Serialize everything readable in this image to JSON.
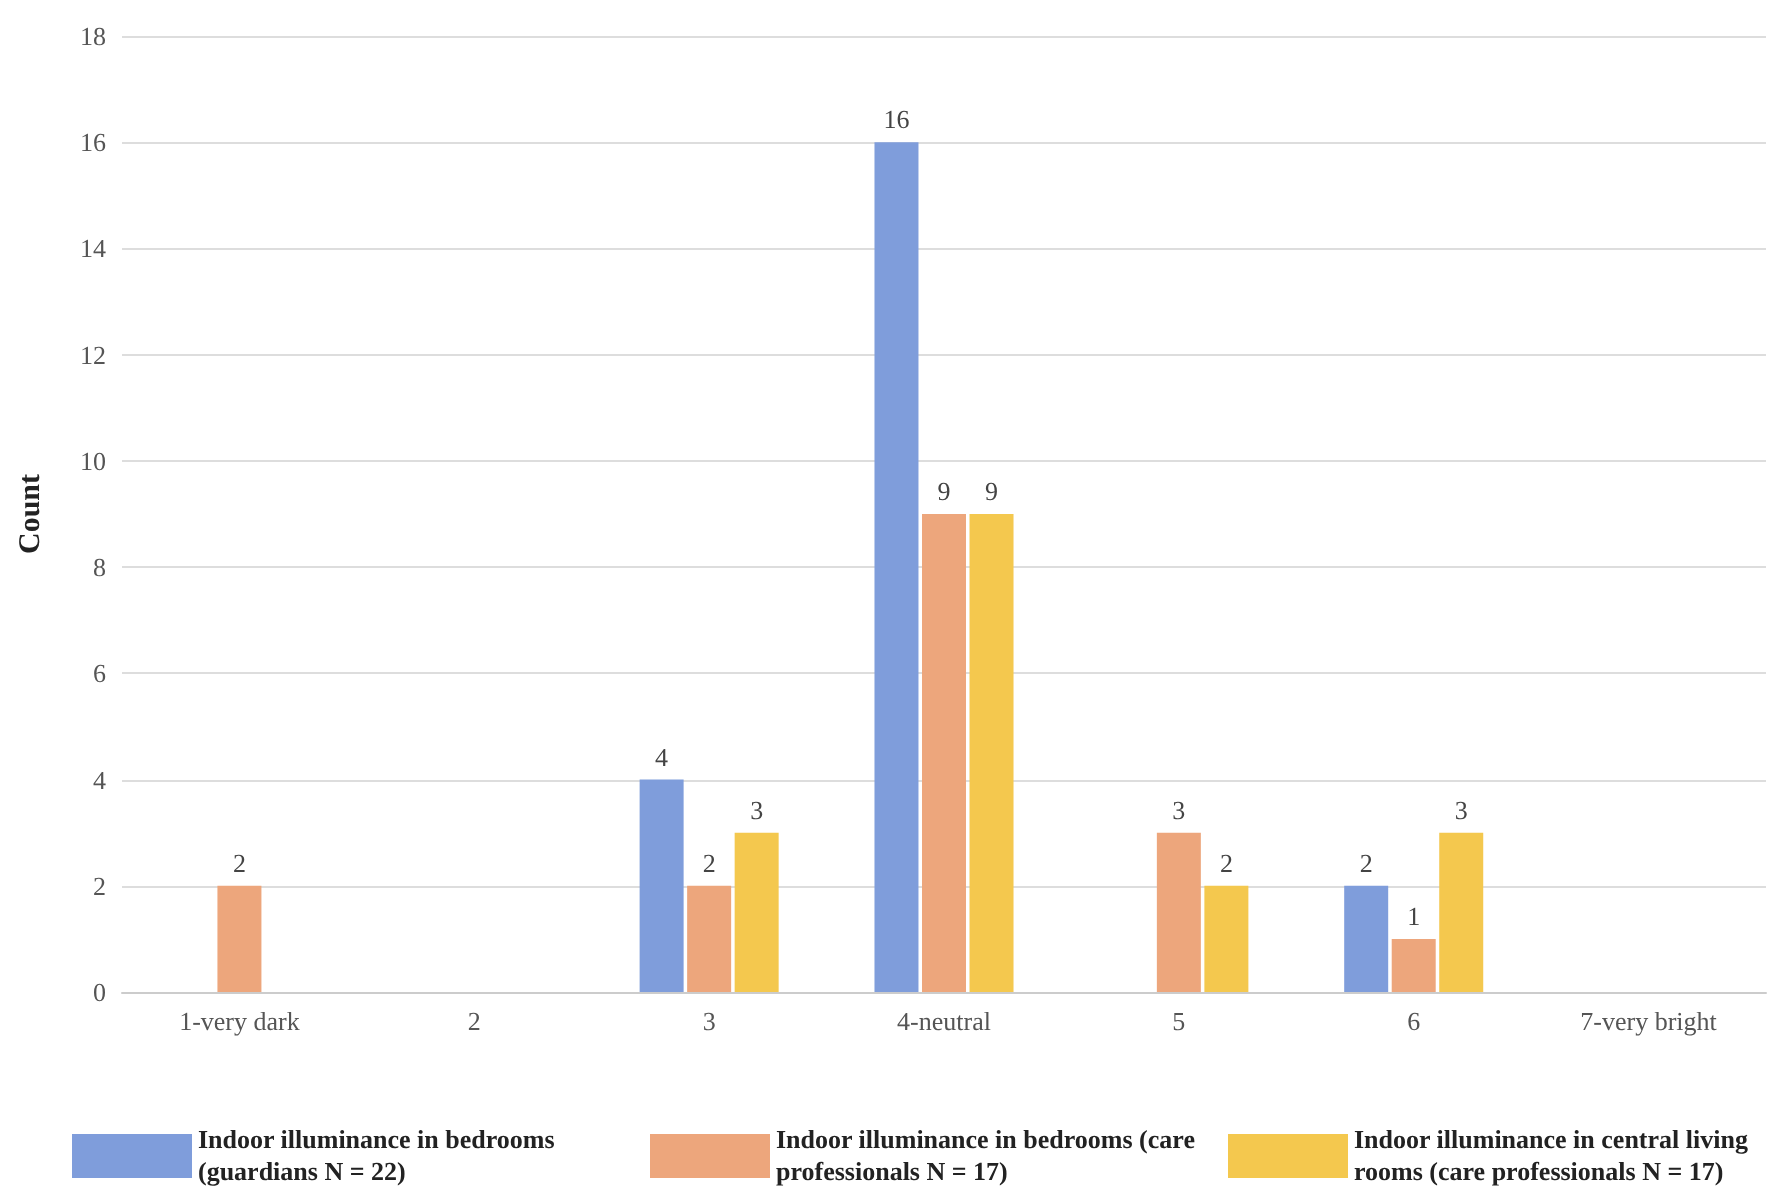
{
  "chart_data": {
    "type": "bar",
    "ylabel": "Count",
    "categories": [
      "1-very dark",
      "2",
      "3",
      "4-neutral",
      "5",
      "6",
      "7-very bright"
    ],
    "series": [
      {
        "name": "Indoor illuminance in bedrooms (guardians N = 22)",
        "color": "#7f9ddb",
        "values": [
          null,
          null,
          4,
          16,
          null,
          2,
          null
        ]
      },
      {
        "name": "Indoor illuminance in bedrooms (care professionals N = 17)",
        "color": "#eda67c",
        "values": [
          2,
          null,
          2,
          9,
          3,
          1,
          null
        ]
      },
      {
        "name": "Indoor illuminance in central living rooms (care professionals N = 17)",
        "color": "#f4c84e",
        "values": [
          null,
          null,
          3,
          9,
          2,
          3,
          null
        ]
      }
    ],
    "ylim": [
      0,
      18
    ],
    "yticks": [
      0,
      2,
      4,
      6,
      8,
      10,
      12,
      14,
      16,
      18
    ],
    "grid": "y",
    "legend": "bottom",
    "data_labels": true
  }
}
